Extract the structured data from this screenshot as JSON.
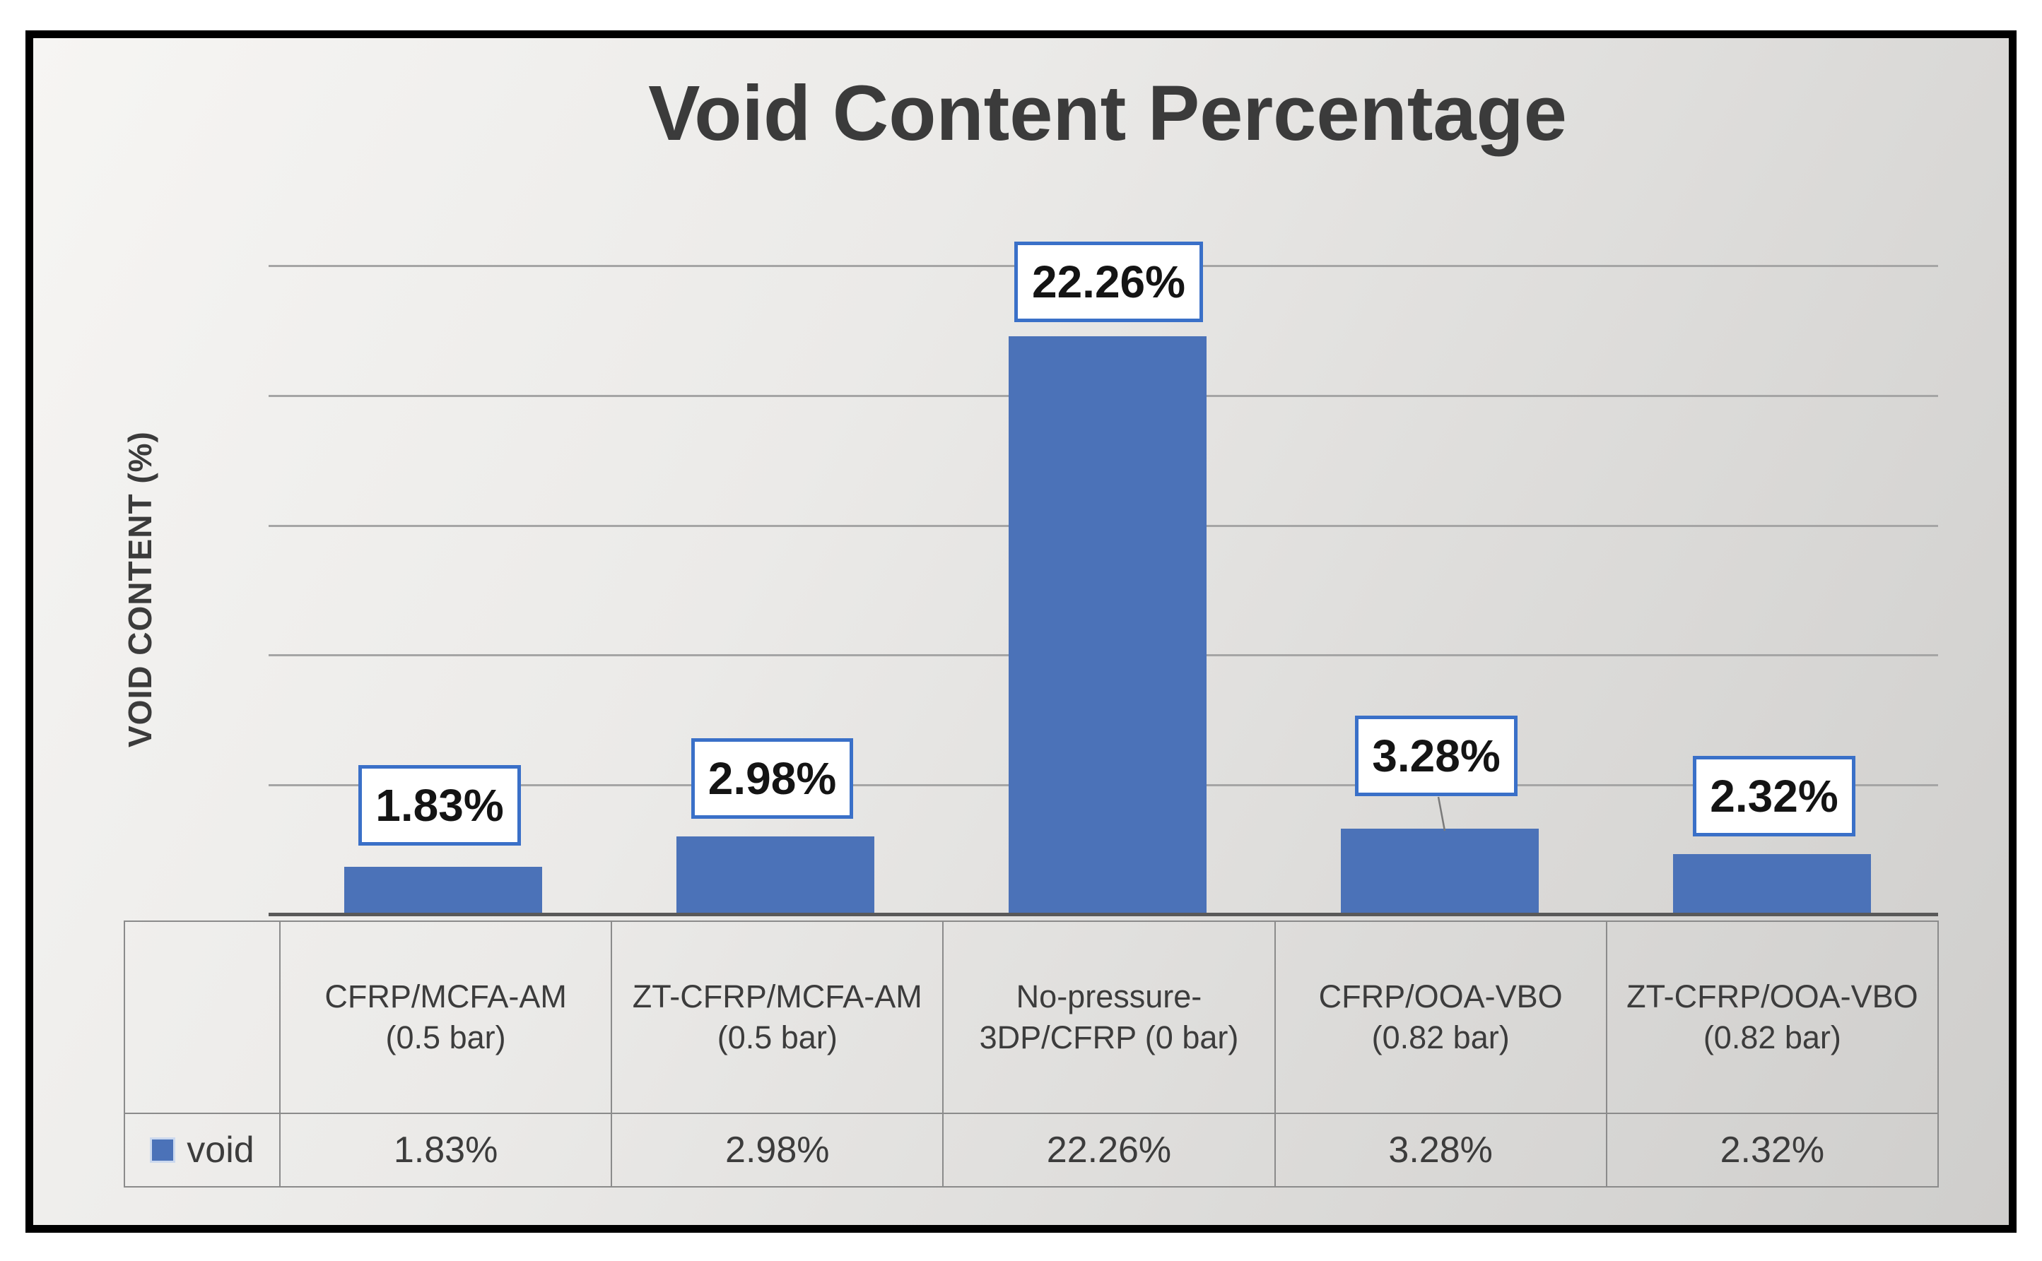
{
  "title": "Void Content Percentage",
  "y_axis": {
    "label": "VOID CONTENT (%)"
  },
  "legend": {
    "series_label": "void",
    "swatch": "blue-square-icon"
  },
  "colors": {
    "bar": "#4b72b8",
    "data_label_border": "#3a70c8",
    "data_label_fill": "#ffffff",
    "gridline": "#a5a5a5",
    "axis_line": "#595959",
    "table_border": "#8b8b8b",
    "text": "#3b3b3b",
    "frame_border": "#000000"
  },
  "chart_data": {
    "type": "bar",
    "title": "Void Content Percentage",
    "xlabel": "",
    "ylabel": "VOID CONTENT (%)",
    "categories": [
      "CFRP/MCFA-AM (0.5 bar)",
      "ZT-CFRP/MCFA-AM (0.5 bar)",
      "No-pressure-3DP/CFRP (0 bar)",
      "CFRP/OOA-VBO (0.82 bar)",
      "ZT-CFRP/OOA-VBO (0.82 bar)"
    ],
    "series": [
      {
        "name": "void",
        "values": [
          1.83,
          2.98,
          22.26,
          3.28,
          2.32
        ]
      }
    ],
    "data_labels": [
      "1.83%",
      "2.98%",
      "22.26%",
      "3.28%",
      "2.32%"
    ],
    "ylim": [
      0,
      25
    ],
    "gridline_values": [
      5,
      10,
      15,
      20,
      25
    ],
    "y_tick_labels_shown": false,
    "grid": true,
    "legend_position": "data-table-left"
  },
  "data_table": {
    "columns": [
      "CFRP/MCFA-AM (0.5 bar)",
      "ZT-CFRP/MCFA-AM (0.5 bar)",
      "No-pressure-3DP/CFRP (0 bar)",
      "CFRP/OOA-VBO (0.82 bar)",
      "ZT-CFRP/OOA-VBO (0.82 bar)"
    ],
    "rows": [
      {
        "label": "void",
        "values": [
          "1.83%",
          "2.98%",
          "22.26%",
          "3.28%",
          "2.32%"
        ]
      }
    ]
  }
}
